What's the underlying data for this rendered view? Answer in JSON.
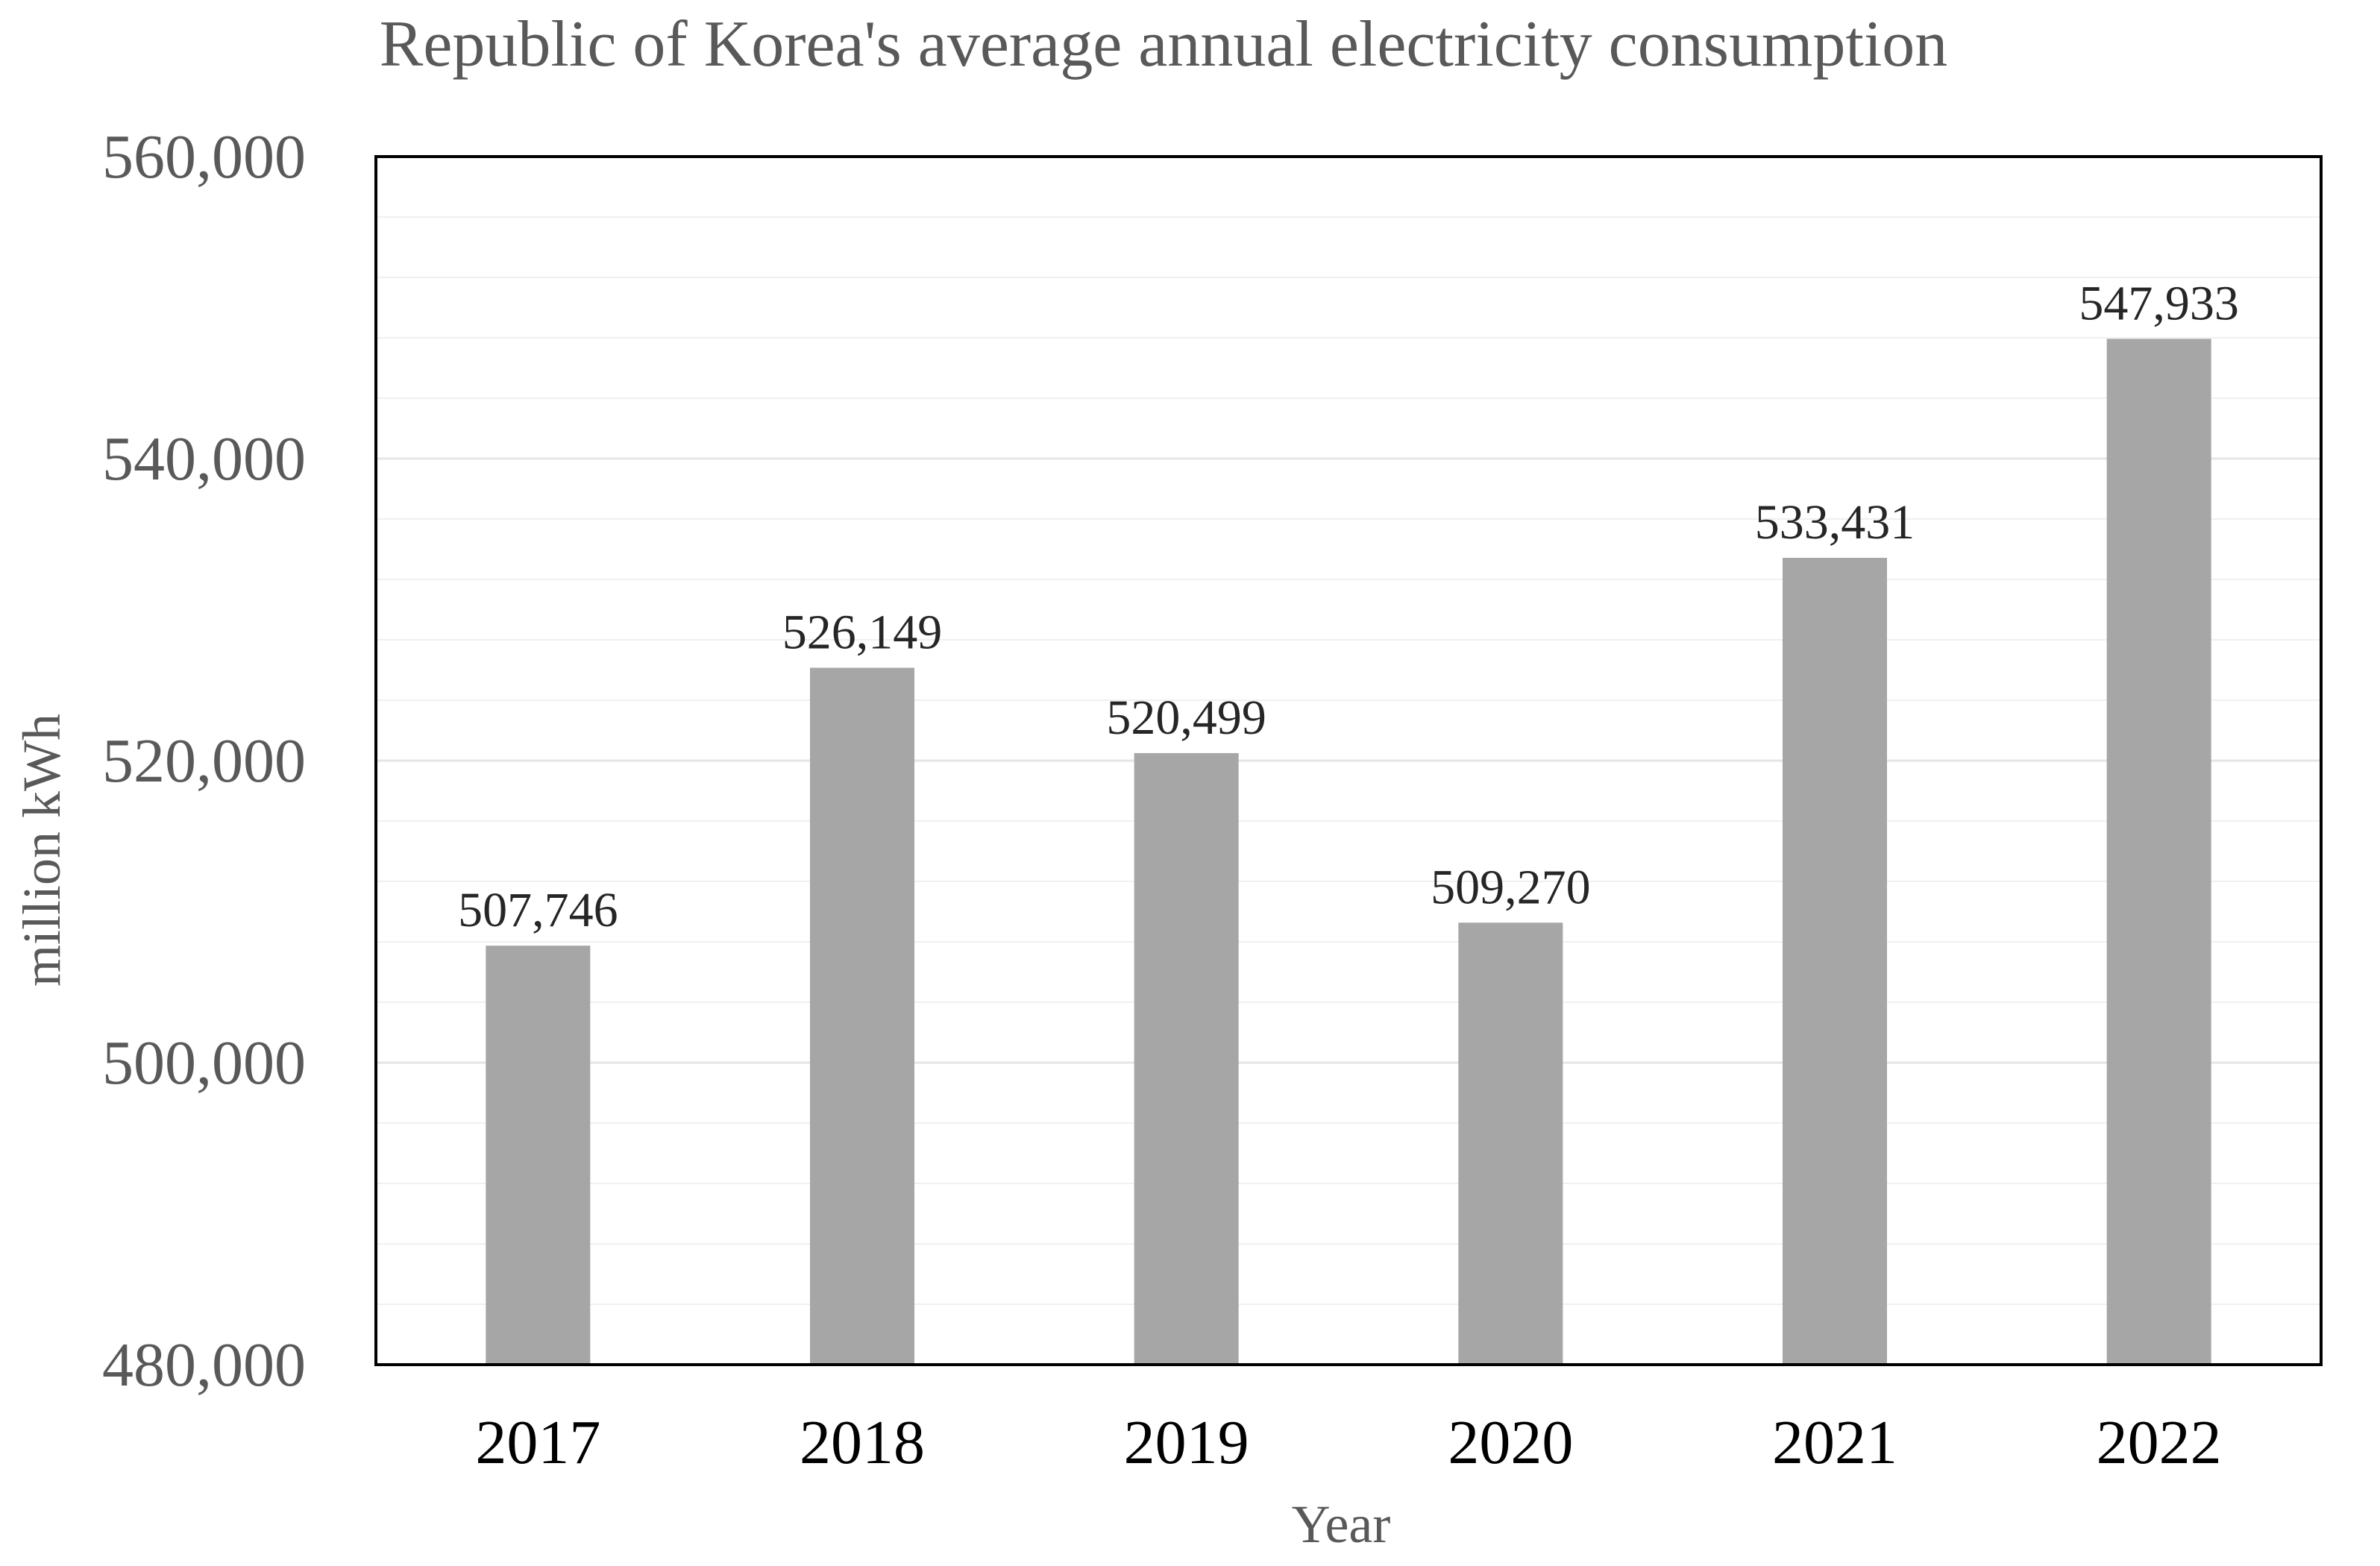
{
  "chart_data": {
    "type": "bar",
    "title": "Republic of Korea's average annual electricity consumption",
    "xlabel": "Year",
    "ylabel": "million kWh",
    "categories": [
      "2017",
      "2018",
      "2019",
      "2020",
      "2021",
      "2022"
    ],
    "values": [
      507746,
      526149,
      520499,
      509270,
      533431,
      547933
    ],
    "data_labels": [
      "507,746",
      "526,149",
      "520,499",
      "509,270",
      "533,431",
      "547,933"
    ],
    "ylim": [
      480000,
      560000
    ],
    "yticks": [
      480000,
      500000,
      520000,
      540000,
      560000
    ],
    "ytick_labels": [
      "480,000",
      "500,000",
      "520,000",
      "540,000",
      "560,000"
    ],
    "minor_gridlines": true,
    "grid": true,
    "legend": "none",
    "colors": {
      "bar": "#a6a6a6",
      "gridline": "#e6e6e6",
      "frame": "#000000"
    }
  }
}
